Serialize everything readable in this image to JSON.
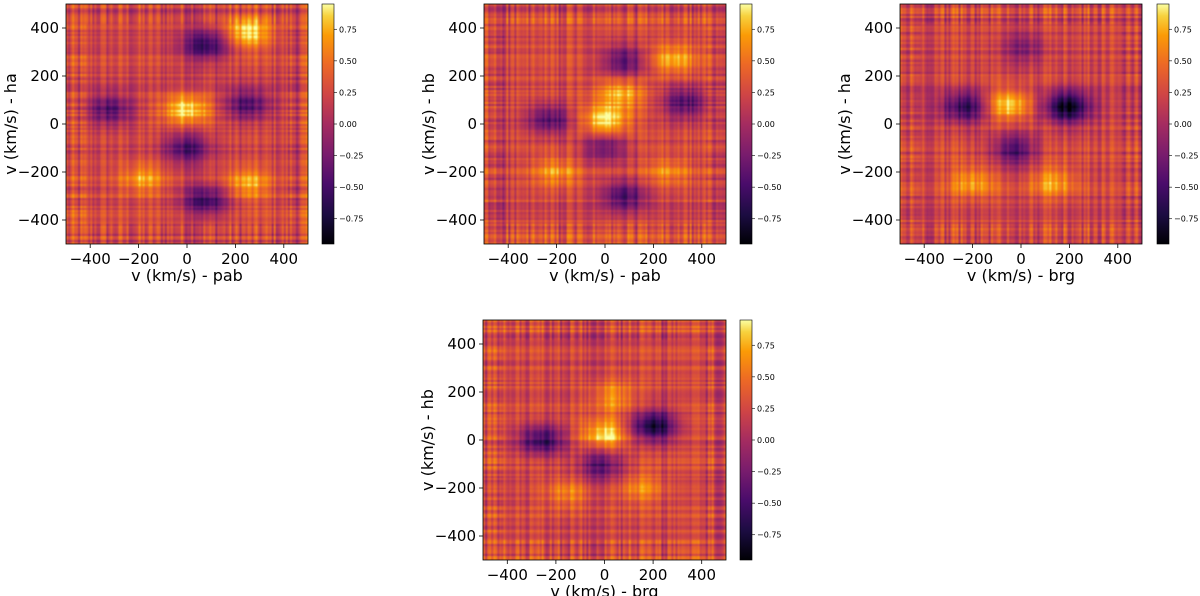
{
  "chart_data": [
    {
      "type": "heatmap",
      "xlabel": "v (km/s) - pab",
      "ylabel": "v (km/s) - ha",
      "xlim": [
        -500,
        500
      ],
      "ylim": [
        -500,
        500
      ],
      "xticks": [
        -400,
        -200,
        0,
        200,
        400
      ],
      "yticks": [
        -400,
        -200,
        0,
        200,
        400
      ],
      "colormap": "inferno",
      "colorbar": {
        "range": [
          -0.95,
          0.95
        ],
        "ticks": [
          0.75,
          0.5,
          0.25,
          0.0,
          -0.25,
          -0.5,
          -0.75
        ]
      },
      "features": [
        {
          "x": 0,
          "y": 60,
          "value": 0.85
        },
        {
          "x": 250,
          "y": 380,
          "value": 0.8
        },
        {
          "x": 80,
          "y": 330,
          "value": -0.7
        },
        {
          "x": 80,
          "y": -320,
          "value": -0.65
        },
        {
          "x": 250,
          "y": 80,
          "value": -0.6
        },
        {
          "x": -320,
          "y": 60,
          "value": -0.55
        },
        {
          "x": 0,
          "y": -100,
          "value": -0.55
        },
        {
          "x": -180,
          "y": -230,
          "value": 0.55
        },
        {
          "x": 250,
          "y": -250,
          "value": 0.6
        }
      ]
    },
    {
      "type": "heatmap",
      "xlabel": "v (km/s) - pab",
      "ylabel": "v (km/s) - hb",
      "xlim": [
        -500,
        500
      ],
      "ylim": [
        -500,
        500
      ],
      "xticks": [
        -400,
        -200,
        0,
        200,
        400
      ],
      "yticks": [
        -400,
        -200,
        0,
        200,
        400
      ],
      "colormap": "inferno",
      "colorbar": {
        "range": [
          -0.95,
          0.95
        ],
        "ticks": [
          0.75,
          0.5,
          0.25,
          0.0,
          -0.25,
          -0.5,
          -0.75
        ]
      },
      "features": [
        {
          "x": 0,
          "y": 10,
          "value": 0.85
        },
        {
          "x": 60,
          "y": 130,
          "value": 0.6
        },
        {
          "x": 280,
          "y": 270,
          "value": 0.6
        },
        {
          "x": 80,
          "y": 260,
          "value": -0.6
        },
        {
          "x": 80,
          "y": -300,
          "value": -0.6
        },
        {
          "x": 330,
          "y": 90,
          "value": -0.6
        },
        {
          "x": -230,
          "y": 20,
          "value": -0.55
        },
        {
          "x": 0,
          "y": -90,
          "value": -0.5
        },
        {
          "x": -200,
          "y": -200,
          "value": 0.5
        },
        {
          "x": 260,
          "y": -200,
          "value": 0.45
        }
      ]
    },
    {
      "type": "heatmap",
      "xlabel": "v (km/s) - brg",
      "ylabel": "v (km/s) - ha",
      "xlim": [
        -500,
        500
      ],
      "ylim": [
        -500,
        500
      ],
      "xticks": [
        -400,
        -200,
        0,
        200,
        400
      ],
      "yticks": [
        -400,
        -200,
        0,
        200,
        400
      ],
      "colormap": "inferno",
      "colorbar": {
        "range": [
          -0.95,
          0.95
        ],
        "ticks": [
          0.75,
          0.5,
          0.25,
          0.0,
          -0.25,
          -0.5,
          -0.75
        ]
      },
      "features": [
        {
          "x": -50,
          "y": 80,
          "value": 0.85
        },
        {
          "x": 190,
          "y": 70,
          "value": -0.95
        },
        {
          "x": -230,
          "y": 70,
          "value": -0.7
        },
        {
          "x": -30,
          "y": -110,
          "value": -0.6
        },
        {
          "x": -200,
          "y": -240,
          "value": 0.55
        },
        {
          "x": 130,
          "y": -240,
          "value": 0.55
        },
        {
          "x": 10,
          "y": 320,
          "value": -0.3
        }
      ]
    },
    {
      "type": "heatmap",
      "xlabel": "v (km/s) - brg",
      "ylabel": "v (km/s) - hb",
      "xlim": [
        -500,
        500
      ],
      "ylim": [
        -500,
        500
      ],
      "xticks": [
        -400,
        -200,
        0,
        200,
        400
      ],
      "yticks": [
        -400,
        -200,
        0,
        200,
        400
      ],
      "colormap": "inferno",
      "colorbar": {
        "range": [
          -0.95,
          0.95
        ],
        "ticks": [
          0.75,
          0.5,
          0.25,
          0.0,
          -0.25,
          -0.5,
          -0.75
        ]
      },
      "features": [
        {
          "x": 0,
          "y": 20,
          "value": 0.85
        },
        {
          "x": 30,
          "y": 180,
          "value": 0.55
        },
        {
          "x": 200,
          "y": 60,
          "value": -0.95
        },
        {
          "x": -260,
          "y": 0,
          "value": -0.7
        },
        {
          "x": -10,
          "y": -100,
          "value": -0.55
        },
        {
          "x": -150,
          "y": -220,
          "value": 0.5
        },
        {
          "x": 150,
          "y": -200,
          "value": 0.5
        }
      ]
    }
  ]
}
